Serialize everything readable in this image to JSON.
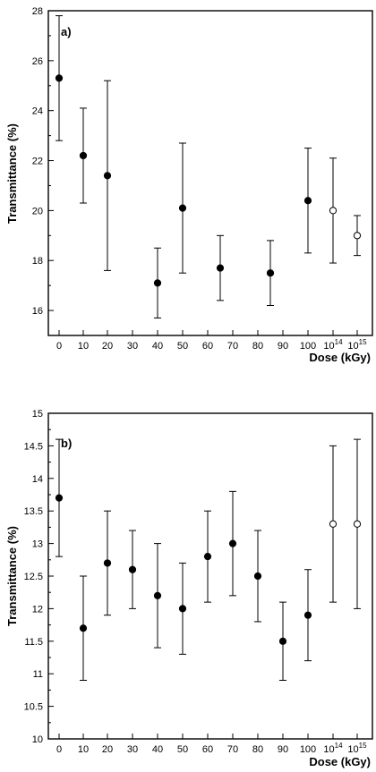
{
  "chart_data": [
    {
      "type": "scatter",
      "panel_label": "a)",
      "ylabel": "Transmittance (%)",
      "xlabel": "Dose (kGy)",
      "ylim": [
        15,
        28
      ],
      "yticks": [
        16,
        18,
        20,
        22,
        24,
        26,
        28
      ],
      "xtick_labels": [
        "0",
        "10",
        "20",
        "30",
        "40",
        "50",
        "60",
        "70",
        "80",
        "90",
        "100",
        "10^14",
        "10^15"
      ],
      "grid": false,
      "points": [
        {
          "x": "0",
          "y": 25.3,
          "err_low": 22.8,
          "err_high": 27.8,
          "filled": true
        },
        {
          "x": "10",
          "y": 22.2,
          "err_low": 20.3,
          "err_high": 24.1,
          "filled": true
        },
        {
          "x": "20",
          "y": 21.4,
          "err_low": 17.6,
          "err_high": 25.2,
          "filled": true
        },
        {
          "x": "40",
          "y": 17.1,
          "err_low": 15.7,
          "err_high": 18.5,
          "filled": true
        },
        {
          "x": "50",
          "y": 20.1,
          "err_low": 17.5,
          "err_high": 22.7,
          "filled": true
        },
        {
          "x": "65",
          "y": 17.7,
          "err_low": 16.4,
          "err_high": 19.0,
          "filled": true
        },
        {
          "x": "85",
          "y": 17.5,
          "err_low": 16.2,
          "err_high": 18.8,
          "filled": true
        },
        {
          "x": "100",
          "y": 20.4,
          "err_low": 18.3,
          "err_high": 22.5,
          "filled": true
        },
        {
          "x": "10^14",
          "y": 20.0,
          "err_low": 17.9,
          "err_high": 22.1,
          "filled": false
        },
        {
          "x": "10^15",
          "y": 19.0,
          "err_low": 18.2,
          "err_high": 19.8,
          "filled": false
        }
      ]
    },
    {
      "type": "scatter",
      "panel_label": "b)",
      "ylabel": "Transmittance (%)",
      "xlabel": "Dose (kGy)",
      "ylim": [
        10,
        15
      ],
      "yticks": [
        10,
        10.5,
        11,
        11.5,
        12,
        12.5,
        13,
        13.5,
        14,
        14.5,
        15
      ],
      "xtick_labels": [
        "0",
        "10",
        "20",
        "30",
        "40",
        "50",
        "60",
        "70",
        "80",
        "90",
        "100",
        "10^14",
        "10^15"
      ],
      "grid": false,
      "points": [
        {
          "x": "0",
          "y": 13.7,
          "err_low": 12.8,
          "err_high": 14.6,
          "filled": true
        },
        {
          "x": "10",
          "y": 11.7,
          "err_low": 10.9,
          "err_high": 12.5,
          "filled": true
        },
        {
          "x": "20",
          "y": 12.7,
          "err_low": 11.9,
          "err_high": 13.5,
          "filled": true
        },
        {
          "x": "30",
          "y": 12.6,
          "err_low": 12.0,
          "err_high": 13.2,
          "filled": true
        },
        {
          "x": "40",
          "y": 12.2,
          "err_low": 11.4,
          "err_high": 13.0,
          "filled": true
        },
        {
          "x": "50",
          "y": 12.0,
          "err_low": 11.3,
          "err_high": 12.7,
          "filled": true
        },
        {
          "x": "60",
          "y": 12.8,
          "err_low": 12.1,
          "err_high": 13.5,
          "filled": true
        },
        {
          "x": "70",
          "y": 13.0,
          "err_low": 12.2,
          "err_high": 13.8,
          "filled": true
        },
        {
          "x": "80",
          "y": 12.5,
          "err_low": 11.8,
          "err_high": 13.2,
          "filled": true
        },
        {
          "x": "90",
          "y": 11.5,
          "err_low": 10.9,
          "err_high": 12.1,
          "filled": true
        },
        {
          "x": "100",
          "y": 11.9,
          "err_low": 11.2,
          "err_high": 12.6,
          "filled": true
        },
        {
          "x": "10^14",
          "y": 13.3,
          "err_low": 12.1,
          "err_high": 14.5,
          "filled": false
        },
        {
          "x": "10^15",
          "y": 13.3,
          "err_low": 12.0,
          "err_high": 14.6,
          "filled": false
        }
      ]
    }
  ]
}
